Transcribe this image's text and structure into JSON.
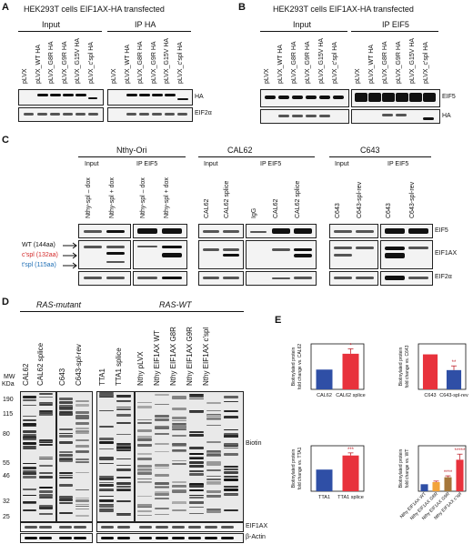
{
  "panels": {
    "A": {
      "letter": "A",
      "title": "HEK293T cells EIF1AX-HA transfected",
      "group_left": "Input",
      "group_right": "IP HA",
      "lanes": [
        "pLVX",
        "pLVX_WT HA",
        "pLVX_G8R HA",
        "pLVX_G9R HA",
        "pLVX_G15V HA",
        "pLVX_c'spl HA"
      ],
      "row_labels": [
        "HA",
        "EIF2α"
      ]
    },
    "B": {
      "letter": "B",
      "title": "HEK293T cells EIF1AX-HA transfected",
      "group_left": "Input",
      "group_right": "IP EIF5",
      "lanes": [
        "pLVX",
        "pLVX_WT HA",
        "pLVX_G8R HA",
        "pLVX_G9R HA",
        "pLVX_G15V HA",
        "pLVX_c'spl HA"
      ],
      "row_labels": [
        "EIF5",
        "HA"
      ]
    },
    "C": {
      "letter": "C",
      "group1": {
        "title": "Nthy-Ori",
        "input": "Input",
        "ip": "IP EIF5",
        "lanes": [
          "Nthy-spl – dox",
          "Nthy-spl + dox",
          "Nthy-spl – dox",
          "Nthy-spl + dox"
        ]
      },
      "group2": {
        "title": "CAL62",
        "input": "Input",
        "ip": "IP EIF5",
        "lanes": [
          "CAL62",
          "CAL62 splice",
          "IgG",
          "CAL62",
          "CAL62 splice"
        ]
      },
      "group3": {
        "title": "C643",
        "input": "Input",
        "ip": "IP EIF5",
        "lanes": [
          "C643",
          "C643-spl-rev",
          "C643",
          "C643-spl-rev"
        ]
      },
      "isoforms": {
        "wt": "WT (144aa)",
        "cspl": "c'spl (132aa)",
        "tspl": "t'spl (115aa)"
      },
      "row_labels": [
        "EIF5",
        "EIF1AX",
        "EIF2α"
      ]
    },
    "D": {
      "letter": "D",
      "group_left": "RAS-mutant",
      "group_right": "RAS-WT",
      "mw_label": "MW",
      "kda_label": "KDa",
      "mw_marks": [
        "190",
        "115",
        "80",
        "55",
        "46",
        "32",
        "25"
      ],
      "lanes_left": [
        "CAL62",
        "CAL62 splice",
        "C643",
        "C643-spl-rev"
      ],
      "lanes_right": [
        "TTA1",
        "TTA1 splice",
        "Nthy pLVX",
        "Nthy EIF1AX WT",
        "Nthy EIF1AX G8R",
        "Nthy EIF1AX G9R",
        "Nthy EIF1AX c'spl"
      ],
      "row_labels": [
        "Biotin",
        "EIF1AX",
        "β-Actin"
      ]
    },
    "E": {
      "letter": "E"
    }
  },
  "chart_data": [
    {
      "type": "bar",
      "ylabel": "Biotinylated protein fold change vs. CAL62",
      "categories": [
        "CAL62",
        "CAL62 splice"
      ],
      "values": [
        1.0,
        1.8
      ],
      "errors": [
        0,
        0.25
      ],
      "colors": [
        "#2f4fa6",
        "#e8323c"
      ],
      "significance": [
        "",
        "*"
      ],
      "ylim": [
        0,
        2.3
      ]
    },
    {
      "type": "bar",
      "ylabel": "Biotinylated protein fold change vs. C643",
      "categories": [
        "C643",
        "C643-spl-rev"
      ],
      "values": [
        1.0,
        0.55
      ],
      "errors": [
        0,
        0.12
      ],
      "colors": [
        "#e8323c",
        "#2f4fa6"
      ],
      "significance": [
        "",
        "**"
      ],
      "ylim": [
        0,
        1.3
      ]
    },
    {
      "type": "bar",
      "ylabel": "Biotinylated protein fold change vs. TTA1",
      "categories": [
        "TTA1",
        "TTA1 splice"
      ],
      "values": [
        1.0,
        1.65
      ],
      "errors": [
        0,
        0.12
      ],
      "colors": [
        "#2f4fa6",
        "#e8323c"
      ],
      "significance": [
        "",
        "***"
      ],
      "ylim": [
        0,
        2.1
      ]
    },
    {
      "type": "bar",
      "ylabel": "Biotinylated protein fold change vs. WT",
      "categories": [
        "Nthy EIF1AX WT",
        "Nthy EIF1AX G8R",
        "Nthy EIF1AX G9R",
        "Nthy EIF1AX c'spl"
      ],
      "values": [
        1.0,
        1.3,
        2.0,
        4.5
      ],
      "errors": [
        0,
        0.15,
        0.2,
        0.8
      ],
      "colors": [
        "#2f4fa6",
        "#f2a33a",
        "#a5763a",
        "#e8323c"
      ],
      "significance": [
        "",
        "",
        "****",
        "*****"
      ],
      "ylim": [
        0,
        6.5
      ]
    }
  ]
}
